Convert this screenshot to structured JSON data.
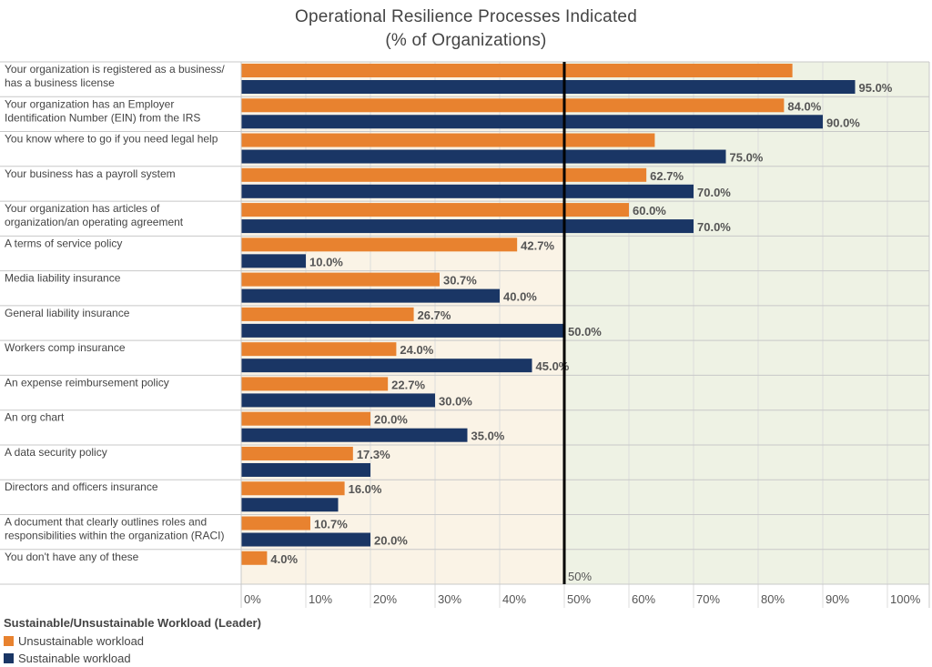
{
  "colors": {
    "unsustainable": "#E8822F",
    "sustainable": "#1A3665",
    "below_ref_bg": "#FAF3E6",
    "above_ref_bg": "#EEF2E4"
  },
  "chart_data": {
    "type": "bar",
    "orientation": "horizontal",
    "title_lines": [
      "Operational Resilience Processes Indicated",
      "(% of Organizations)"
    ],
    "categories": [
      "Your organization is registered as a business/\nhas a business license",
      "Your organization has an Employer\nIdentification Number (EIN) from the IRS",
      "You know where to go if you need legal help",
      "Your business has a payroll system",
      "Your organization has articles of\norganization/an operating agreement",
      "A terms of service policy",
      "Media liability insurance",
      "General liability insurance",
      "Workers comp insurance",
      "An expense reimbursement policy",
      "An org chart",
      "A data security policy",
      "Directors and officers insurance",
      "A document that clearly outlines roles and\nresponsibilities within the organization (RACI)",
      "You don't have any of these"
    ],
    "series": [
      {
        "name": "Unsustainable workload",
        "color_key": "unsustainable",
        "values": [
          85.3,
          84.0,
          64.0,
          62.7,
          60.0,
          42.7,
          30.7,
          26.7,
          24.0,
          22.7,
          20.0,
          17.3,
          16.0,
          10.7,
          4.0
        ],
        "labels": [
          "",
          "84.0%",
          "",
          "62.7%",
          "60.0%",
          "42.7%",
          "30.7%",
          "26.7%",
          "24.0%",
          "22.7%",
          "20.0%",
          "17.3%",
          "16.0%",
          "10.7%",
          "4.0%"
        ]
      },
      {
        "name": "Sustainable workload",
        "color_key": "sustainable",
        "values": [
          95.0,
          90.0,
          75.0,
          70.0,
          70.0,
          10.0,
          40.0,
          50.0,
          45.0,
          30.0,
          35.0,
          20.0,
          15.0,
          20.0,
          0
        ],
        "labels": [
          "95.0%",
          "90.0%",
          "75.0%",
          "70.0%",
          "70.0%",
          "10.0%",
          "40.0%",
          "50.0%",
          "45.0%",
          "30.0%",
          "35.0%",
          "",
          "",
          "20.0%",
          ""
        ]
      }
    ],
    "xlim": [
      0,
      100
    ],
    "xticks": [
      0,
      10,
      20,
      30,
      40,
      50,
      60,
      70,
      80,
      90,
      100
    ],
    "xtick_labels": [
      "0%",
      "10%",
      "20%",
      "30%",
      "40%",
      "50%",
      "60%",
      "70%",
      "80%",
      "90%",
      "100%"
    ],
    "reference_line": {
      "value": 50,
      "label": "50%"
    },
    "legend": {
      "title": "Sustainable/Unsustainable Workload (Leader)",
      "placement": "bottom-left",
      "entries": [
        "Unsustainable workload",
        "Sustainable workload"
      ]
    }
  }
}
